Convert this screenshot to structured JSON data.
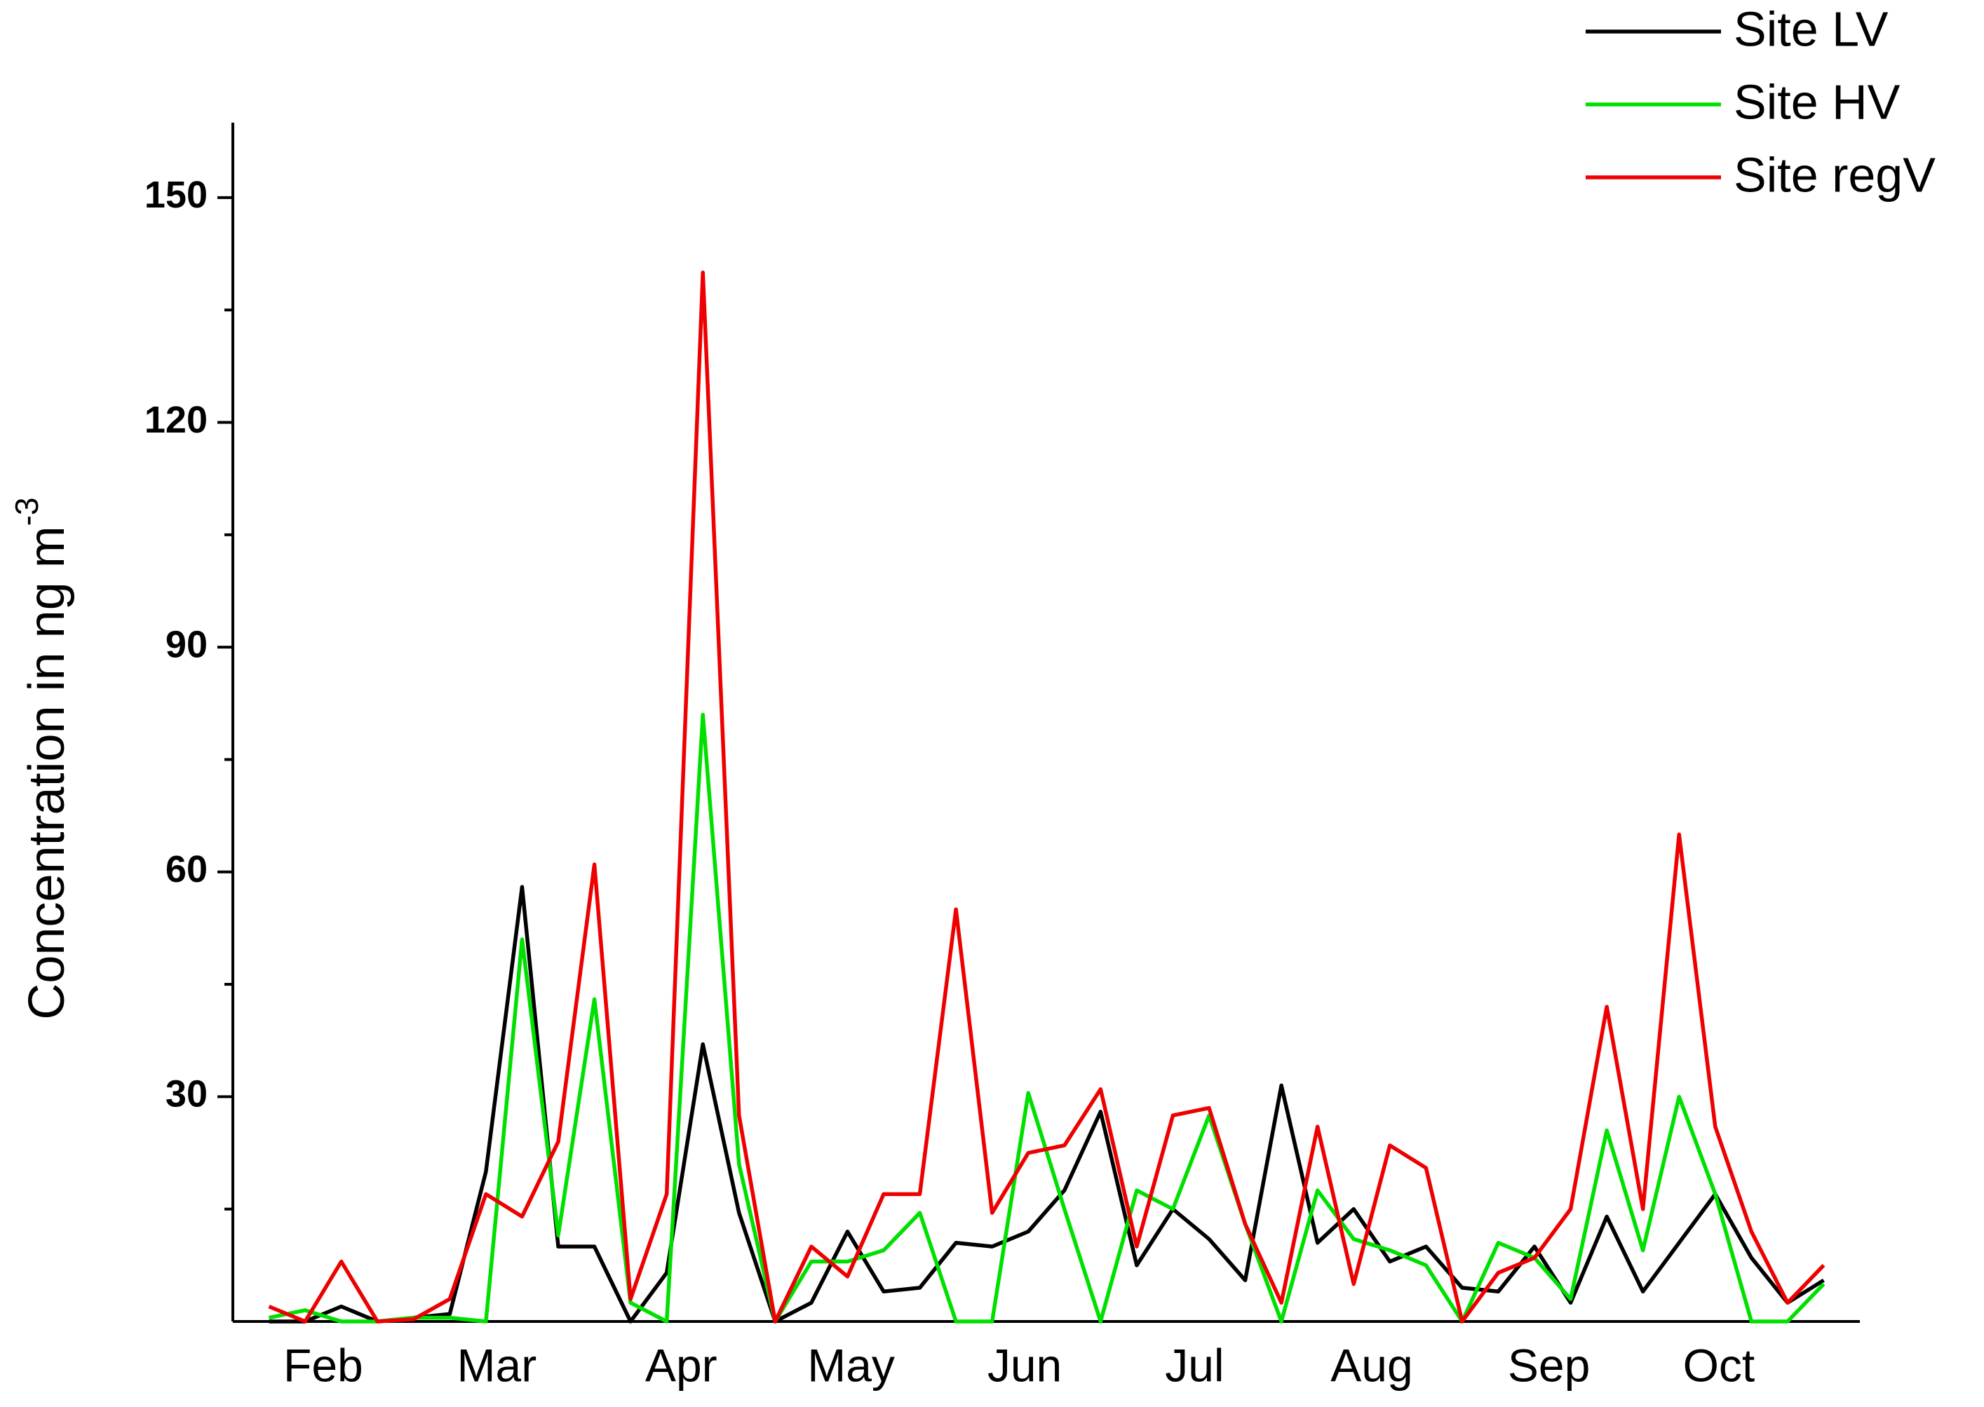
{
  "chart_data": {
    "type": "line",
    "ylabel": "Concentration in ng m",
    "ylabel_sup": "-3",
    "x": [
      0,
      1,
      2,
      3,
      4,
      5,
      6,
      7,
      8,
      9,
      10,
      11,
      12,
      13,
      14,
      15,
      16,
      17,
      18,
      19,
      20,
      21,
      22,
      23,
      24,
      25,
      26,
      27,
      28,
      29,
      30,
      31,
      32,
      33,
      34,
      35,
      36,
      37,
      38,
      39,
      40,
      41,
      42,
      43
    ],
    "xlim": [
      -1,
      44
    ],
    "xticks": [
      {
        "value": 1.5,
        "label": "Feb"
      },
      {
        "value": 6.3,
        "label": "Mar"
      },
      {
        "value": 11.4,
        "label": "Apr"
      },
      {
        "value": 16.1,
        "label": "May"
      },
      {
        "value": 20.9,
        "label": "Jun"
      },
      {
        "value": 25.6,
        "label": "Jul"
      },
      {
        "value": 30.5,
        "label": "Aug"
      },
      {
        "value": 35.4,
        "label": "Sep"
      },
      {
        "value": 40.1,
        "label": "Oct"
      }
    ],
    "ylim": [
      0,
      160
    ],
    "yticks": [
      30,
      60,
      90,
      120,
      150
    ],
    "yminorticks": [
      15,
      45,
      75,
      105,
      135
    ],
    "legend": "upper right",
    "series": [
      {
        "name": "Site LV",
        "color": "#000000",
        "values": [
          0,
          0,
          2,
          0,
          0.5,
          1,
          20,
          58,
          10,
          10,
          0,
          6.5,
          37,
          14.5,
          0,
          2.5,
          12,
          4,
          4.5,
          10.5,
          10,
          12,
          17.5,
          28,
          7.5,
          15,
          11,
          5.5,
          31.5,
          10.5,
          15,
          8,
          10,
          4.5,
          4,
          10,
          2.5,
          14,
          4,
          10.5,
          17,
          8.5,
          2.5,
          5.5
        ]
      },
      {
        "name": "Site HV",
        "color": "#00e000",
        "values": [
          0.5,
          1.5,
          0,
          0,
          0.5,
          0.5,
          0,
          51,
          11.5,
          43,
          2.5,
          0,
          81,
          21,
          0,
          8,
          8,
          9.5,
          14.5,
          0,
          0,
          30.5,
          15,
          0,
          17.5,
          15,
          27.5,
          13,
          0,
          17.5,
          11,
          9.5,
          7.5,
          0,
          10.5,
          8.5,
          3,
          25.5,
          9.5,
          30,
          17,
          0,
          0,
          5
        ]
      },
      {
        "name": "Site regV",
        "color": "#ee0000",
        "values": [
          2,
          0,
          8,
          0,
          0.3,
          3,
          17,
          14,
          24,
          61,
          3,
          17,
          140,
          27.5,
          0,
          10,
          6,
          17,
          17,
          55,
          14.5,
          22.5,
          23.5,
          31,
          10,
          27.5,
          28.5,
          13,
          2.5,
          26,
          5,
          23.5,
          20.5,
          0,
          6.5,
          8.5,
          15,
          42,
          15,
          65,
          26,
          12,
          2.5,
          7.5
        ]
      }
    ]
  }
}
